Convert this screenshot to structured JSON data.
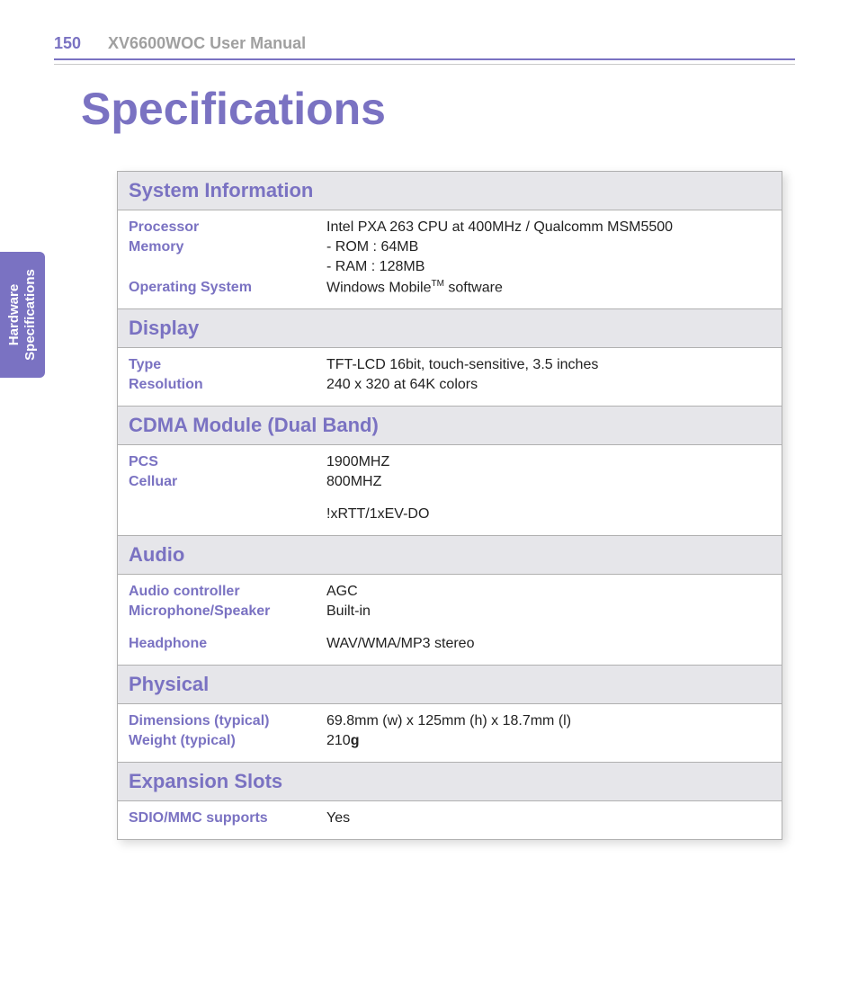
{
  "header": {
    "page_number": "150",
    "manual_title": "XV6600WOC User Manual"
  },
  "page_title": "Specifications",
  "side_tab": {
    "line1": "Hardware",
    "line2": "Specifications"
  },
  "colors": {
    "accent": "#7a72c2",
    "section_bg": "#e6e6ea",
    "border": "#b0b0b0",
    "muted_text": "#a0a0a0",
    "body_text": "#222222"
  },
  "sections": [
    {
      "title": "System Information",
      "rows": [
        {
          "label": "Processor",
          "value": "Intel PXA 263 CPU at 400MHz / Qualcomm MSM5500"
        },
        {
          "label": "Memory",
          "value": "- ROM : 64MB"
        },
        {
          "label": "",
          "value": "- RAM : 128MB"
        },
        {
          "label": "Operating System",
          "value_html": "Windows Mobile<sup>TM</sup> software"
        }
      ]
    },
    {
      "title": "Display",
      "rows": [
        {
          "label": "Type",
          "value": "TFT-LCD 16bit, touch-sensitive, 3.5 inches"
        },
        {
          "label": "Resolution",
          "value": "240 x 320 at 64K colors"
        }
      ]
    },
    {
      "title": "CDMA Module (Dual Band)",
      "rows": [
        {
          "label": "PCS",
          "value": "1900MHZ"
        },
        {
          "label": "Celluar",
          "value": " 800MHZ"
        },
        {
          "label": "",
          "value": "!xRTT/1xEV-DO",
          "extra": true
        }
      ]
    },
    {
      "title": "Audio",
      "rows": [
        {
          "label": "Audio controller",
          "value": "AGC"
        },
        {
          "label": "Microphone/Speaker",
          "value": "Built-in"
        },
        {
          "label": "Headphone",
          "value": "WAV/WMA/MP3 stereo",
          "extra": true
        }
      ]
    },
    {
      "title": "Physical",
      "rows": [
        {
          "label": "Dimensions (typical)",
          "value": "69.8mm (w) x 125mm (h) x 18.7mm (l)"
        },
        {
          "label": "Weight (typical)",
          "value_html": "210<b>g</b>"
        }
      ]
    },
    {
      "title": "Expansion Slots",
      "rows": [
        {
          "label": "SDIO/MMC supports",
          "value": "Yes"
        }
      ]
    }
  ]
}
